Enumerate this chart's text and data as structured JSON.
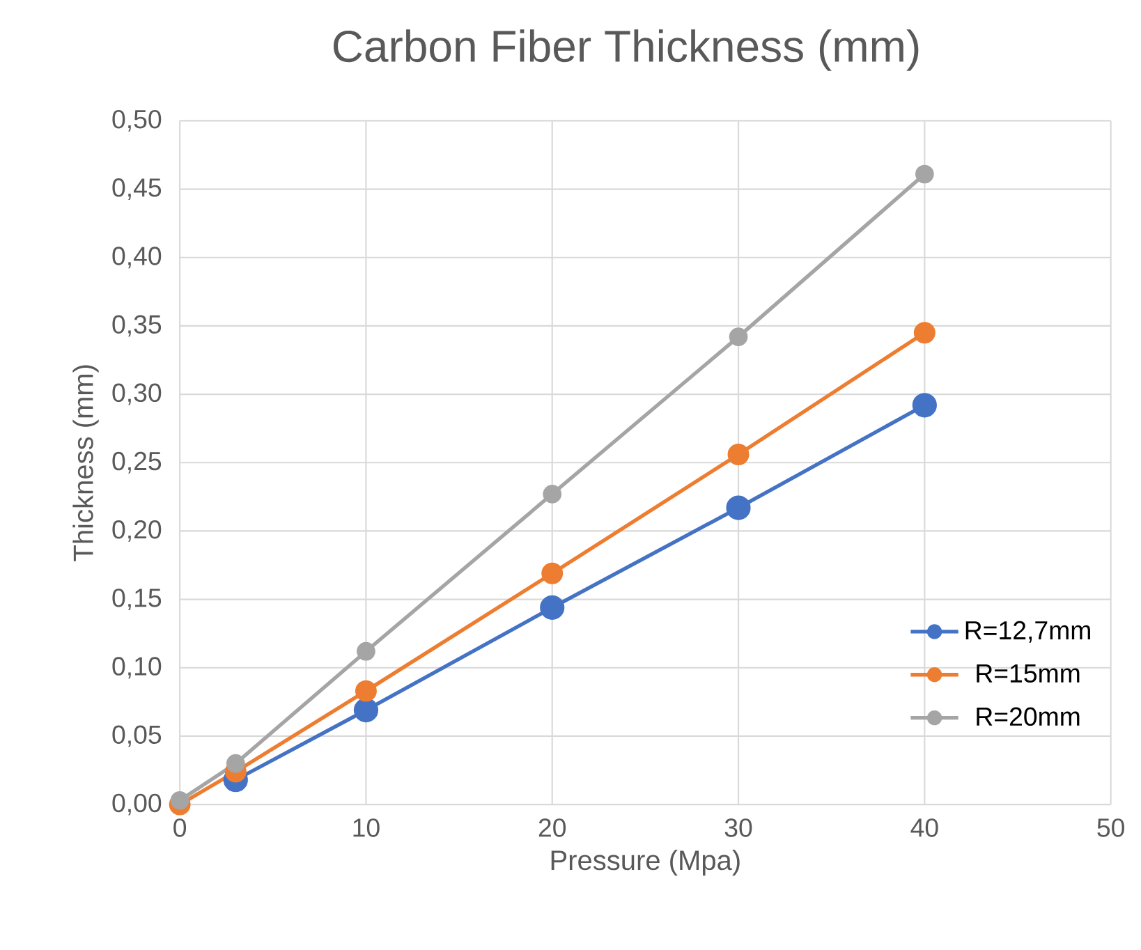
{
  "chart_data": {
    "type": "line",
    "title": "Carbon Fiber Thickness (mm)",
    "xlabel": "Pressure (Mpa)",
    "ylabel": "Thickness (mm)",
    "x": [
      0,
      3,
      10,
      20,
      30,
      40
    ],
    "series": [
      {
        "name": "R=12,7mm",
        "color": "#4472c4",
        "values": [
          null,
          0.018,
          0.069,
          0.144,
          0.217,
          0.292
        ]
      },
      {
        "name": "R=15mm",
        "color": "#ed7d31",
        "values": [
          0.0,
          0.024,
          0.083,
          0.169,
          0.256,
          0.345
        ]
      },
      {
        "name": "R=20mm",
        "color": "#a5a5a5",
        "values": [
          0.003,
          0.03,
          0.112,
          0.227,
          0.342,
          0.461
        ]
      }
    ],
    "xlim": [
      0,
      50
    ],
    "xticks": [
      0,
      10,
      20,
      30,
      40,
      50
    ],
    "ylim": [
      0,
      0.5
    ],
    "yticks": [
      {
        "value": 0,
        "label": "0,00"
      },
      {
        "value": 0.05,
        "label": "0,05"
      },
      {
        "value": 0.1,
        "label": "0,10"
      },
      {
        "value": 0.15,
        "label": "0,15"
      },
      {
        "value": 0.2,
        "label": "0,20"
      },
      {
        "value": 0.25,
        "label": "0,25"
      },
      {
        "value": 0.3,
        "label": "0,30"
      },
      {
        "value": 0.35,
        "label": "0,35"
      },
      {
        "value": 0.4,
        "label": "0,40"
      },
      {
        "value": 0.45,
        "label": "0,45"
      },
      {
        "value": 0.5,
        "label": "0,50"
      }
    ],
    "grid": true,
    "legend": "bottom right",
    "marker": "circle",
    "line_style": "solid"
  }
}
